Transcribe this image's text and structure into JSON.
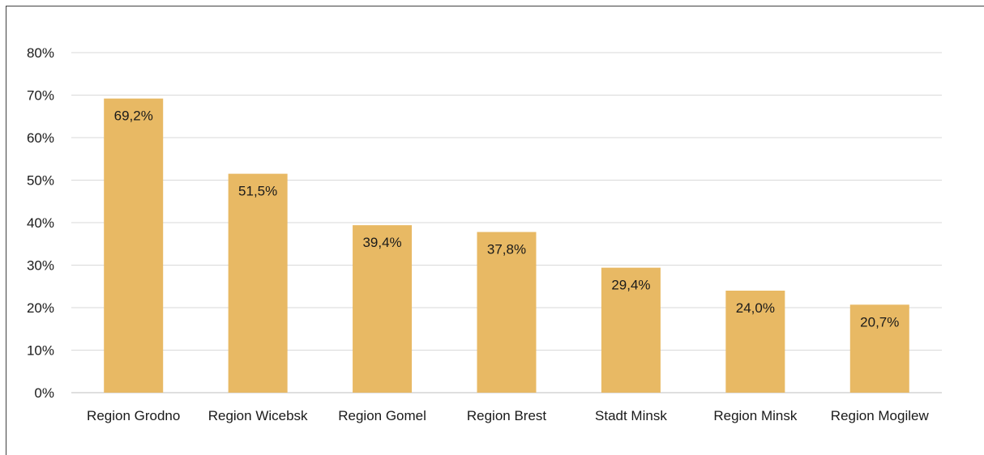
{
  "chart_data": {
    "type": "bar",
    "title": "",
    "xlabel": "",
    "ylabel": "",
    "categories": [
      "Region Grodno",
      "Region Wicebsk",
      "Region Gomel",
      "Region Brest",
      "Stadt Minsk",
      "Region Minsk",
      "Region Mogilew"
    ],
    "values": [
      69.2,
      51.5,
      39.4,
      37.8,
      29.4,
      24.0,
      20.7
    ],
    "data_labels": [
      "69,2%",
      "51,5%",
      "39,4%",
      "37,8%",
      "29,4%",
      "24,0%",
      "20,7%"
    ],
    "ylim": [
      0,
      80
    ],
    "yticks": [
      0,
      10,
      20,
      30,
      40,
      50,
      60,
      70,
      80
    ],
    "ytick_labels": [
      "0%",
      "10%",
      "20%",
      "30%",
      "40%",
      "50%",
      "60%",
      "70%",
      "80%"
    ],
    "grid": true,
    "legend": "none",
    "bar_color": "#e8b964"
  }
}
